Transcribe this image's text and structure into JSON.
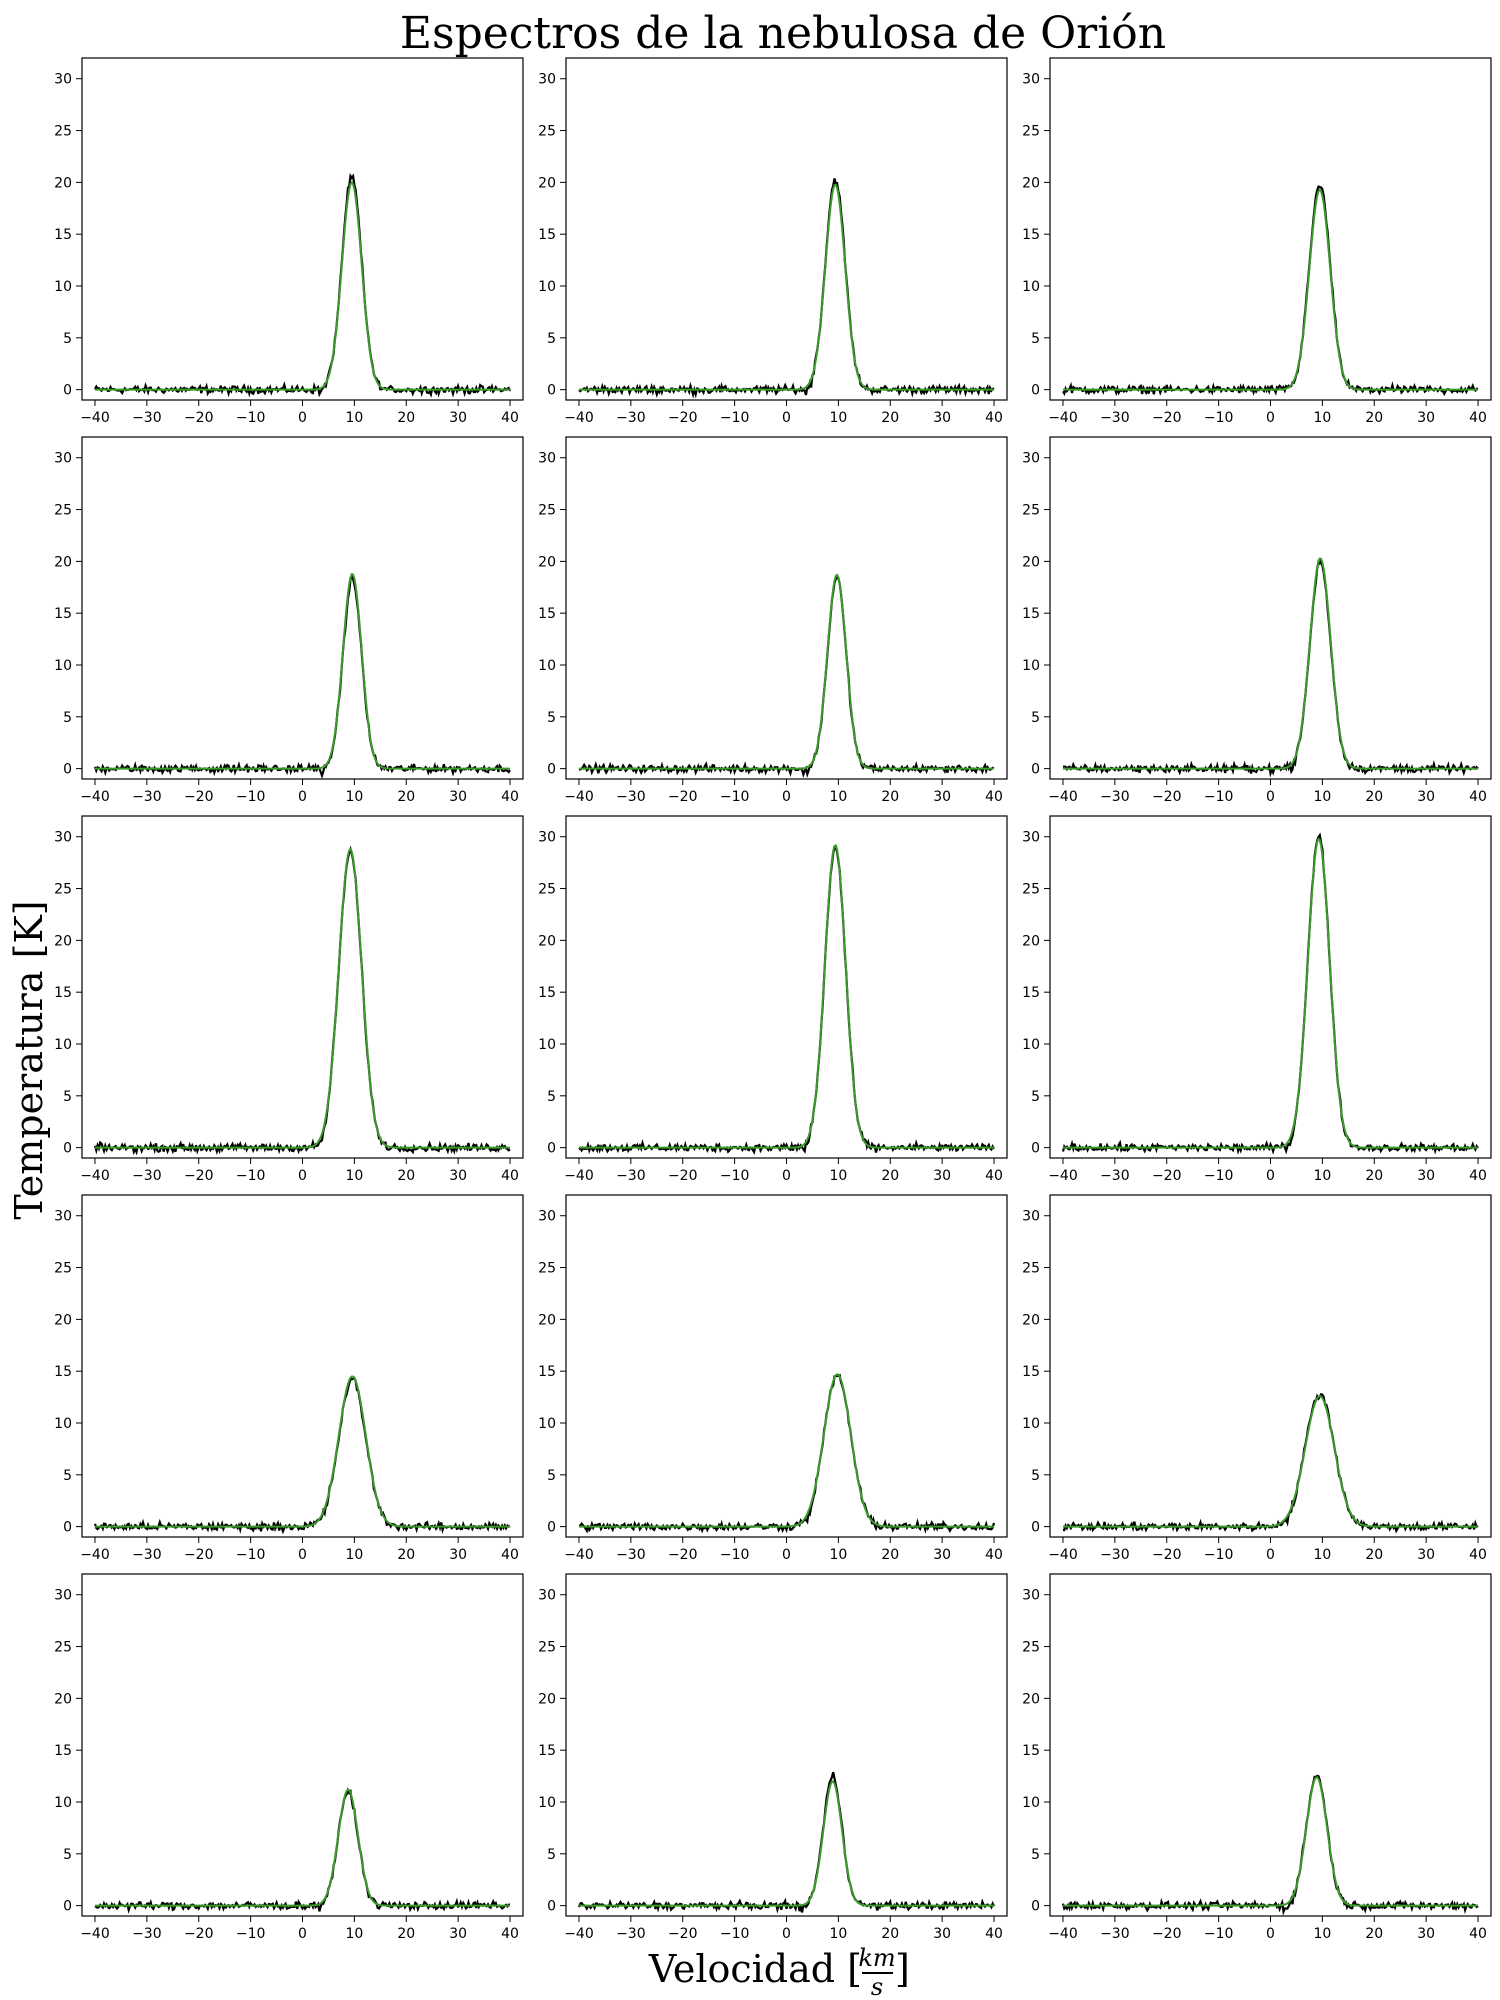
{
  "title": "Espectros de la nebulosa de Orión",
  "xlabel": "Velocidad [",
  "xlabel_frac_num": "km",
  "xlabel_frac_den": "s",
  "xlabel_close": "]",
  "ylabel": "Temperatura [K]",
  "colors": {
    "observed": "#000000",
    "fit": "#3a9a2a",
    "axes": "#000000"
  },
  "chart_data": {
    "type": "line",
    "layout": {
      "rows": 5,
      "cols": 3
    },
    "xlim": [
      -42.5,
      42.5
    ],
    "ylim": [
      -1,
      32
    ],
    "xticks": [
      -40,
      -30,
      -20,
      -10,
      0,
      10,
      20,
      30,
      40
    ],
    "xtick_labels": [
      "−40",
      "−30",
      "−20",
      "−10",
      "0",
      "10",
      "20",
      "30",
      "40"
    ],
    "yticks": [
      0,
      5,
      10,
      15,
      20,
      25,
      30
    ],
    "grid": false,
    "series_style": [
      {
        "role": "observed",
        "color": "#000000"
      },
      {
        "role": "fit",
        "color": "#3a9a2a"
      }
    ],
    "panels": [
      {
        "row": 1,
        "col": 1,
        "peak_T": 20.5,
        "center_v": 9.5,
        "width_v": 1.9,
        "fit_peak_T": 20.0
      },
      {
        "row": 1,
        "col": 2,
        "peak_T": 20.3,
        "center_v": 9.4,
        "width_v": 1.9,
        "fit_peak_T": 19.8
      },
      {
        "row": 1,
        "col": 3,
        "peak_T": 19.8,
        "center_v": 9.5,
        "width_v": 2.0,
        "fit_peak_T": 19.3
      },
      {
        "row": 2,
        "col": 1,
        "peak_T": 18.3,
        "center_v": 9.6,
        "width_v": 1.8,
        "fit_peak_T": 18.8
      },
      {
        "row": 2,
        "col": 2,
        "peak_T": 18.5,
        "center_v": 9.7,
        "width_v": 1.8,
        "fit_peak_T": 18.7
      },
      {
        "row": 2,
        "col": 3,
        "peak_T": 20.0,
        "center_v": 9.6,
        "width_v": 2.0,
        "fit_peak_T": 20.3
      },
      {
        "row": 3,
        "col": 1,
        "peak_T": 28.6,
        "center_v": 9.2,
        "width_v": 2.2,
        "fit_peak_T": 28.8
      },
      {
        "row": 3,
        "col": 2,
        "peak_T": 29.0,
        "center_v": 9.4,
        "width_v": 2.0,
        "fit_peak_T": 29.2
      },
      {
        "row": 3,
        "col": 3,
        "peak_T": 30.0,
        "center_v": 9.3,
        "width_v": 2.1,
        "fit_peak_T": 29.8
      },
      {
        "row": 4,
        "col": 1,
        "peak_T": 14.2,
        "center_v": 9.6,
        "width_v": 2.6,
        "fit_peak_T": 14.5
      },
      {
        "row": 4,
        "col": 2,
        "peak_T": 14.6,
        "center_v": 9.8,
        "width_v": 2.6,
        "fit_peak_T": 14.7
      },
      {
        "row": 4,
        "col": 3,
        "peak_T": 12.8,
        "center_v": 9.5,
        "width_v": 2.8,
        "fit_peak_T": 12.6
      },
      {
        "row": 5,
        "col": 1,
        "peak_T": 11.0,
        "center_v": 8.8,
        "width_v": 1.9,
        "fit_peak_T": 11.2
      },
      {
        "row": 5,
        "col": 2,
        "peak_T": 12.5,
        "center_v": 8.9,
        "width_v": 1.8,
        "fit_peak_T": 12.0
      },
      {
        "row": 5,
        "col": 3,
        "peak_T": 12.6,
        "center_v": 8.9,
        "width_v": 2.0,
        "fit_peak_T": 12.4
      }
    ]
  }
}
